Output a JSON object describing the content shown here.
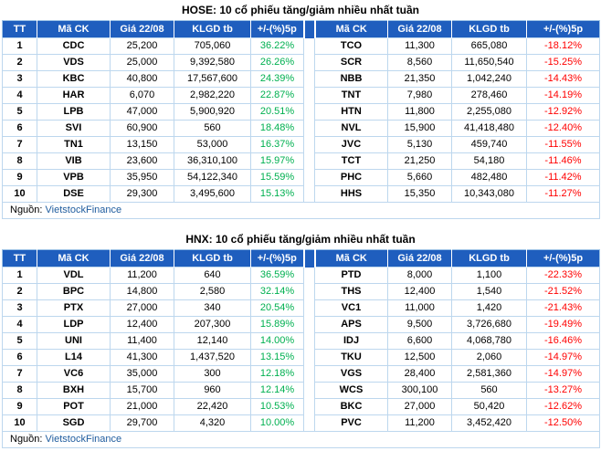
{
  "colors": {
    "header_bg": "#1F5EBE",
    "up_green": "#00B050",
    "down_red": "#FF0000",
    "grid_blue": "#BDD7EE",
    "source_name_blue": "#1F5C9E"
  },
  "source": {
    "prefix": "Nguồn:",
    "name": "VietstockFinance"
  },
  "chart_data": [
    {
      "type": "table",
      "title": "HOSE: 10 cổ phiếu tăng/giảm nhiều nhất tuần",
      "headers": [
        "TT",
        "Mã CK",
        "Giá 22/08",
        "KLGD tb",
        "+/-(%)5p",
        "Mã CK",
        "Giá 22/08",
        "KLGD tb",
        "+/-(%)5p"
      ],
      "rows": [
        [
          "1",
          "CDC",
          "25,200",
          "705,060",
          "36.22%",
          "TCO",
          "11,300",
          "665,080",
          "-18.12%"
        ],
        [
          "2",
          "VDS",
          "25,000",
          "9,392,580",
          "26.26%",
          "SCR",
          "8,560",
          "11,650,540",
          "-15.25%"
        ],
        [
          "3",
          "KBC",
          "40,800",
          "17,567,600",
          "24.39%",
          "NBB",
          "21,350",
          "1,042,240",
          "-14.43%"
        ],
        [
          "4",
          "HAR",
          "6,070",
          "2,982,220",
          "22.87%",
          "TNT",
          "7,980",
          "278,460",
          "-14.19%"
        ],
        [
          "5",
          "LPB",
          "47,000",
          "5,900,920",
          "20.51%",
          "HTN",
          "11,800",
          "2,255,080",
          "-12.92%"
        ],
        [
          "6",
          "SVI",
          "60,900",
          "560",
          "18.48%",
          "NVL",
          "15,900",
          "41,418,480",
          "-12.40%"
        ],
        [
          "7",
          "TN1",
          "13,150",
          "53,000",
          "16.37%",
          "JVC",
          "5,130",
          "459,740",
          "-11.55%"
        ],
        [
          "8",
          "VIB",
          "23,600",
          "36,310,100",
          "15.97%",
          "TCT",
          "21,250",
          "54,180",
          "-11.46%"
        ],
        [
          "9",
          "VPB",
          "35,950",
          "54,122,340",
          "15.59%",
          "PHC",
          "5,660",
          "482,480",
          "-11.42%"
        ],
        [
          "10",
          "DSE",
          "29,300",
          "3,495,600",
          "15.13%",
          "HHS",
          "15,350",
          "10,343,080",
          "-11.27%"
        ]
      ],
      "source": "Nguồn: VietstockFinance"
    },
    {
      "type": "table",
      "title": "HNX: 10 cổ phiếu tăng/giảm nhiều nhất tuần",
      "headers": [
        "TT",
        "Mã CK",
        "Giá 22/08",
        "KLGD tb",
        "+/-(%)5p",
        "Mã CK",
        "Giá 22/08",
        "KLGD tb",
        "+/-(%)5p"
      ],
      "rows": [
        [
          "1",
          "VDL",
          "11,200",
          "640",
          "36.59%",
          "PTD",
          "8,000",
          "1,100",
          "-22.33%"
        ],
        [
          "2",
          "BPC",
          "14,800",
          "2,580",
          "32.14%",
          "THS",
          "12,400",
          "1,540",
          "-21.52%"
        ],
        [
          "3",
          "PTX",
          "27,000",
          "340",
          "20.54%",
          "VC1",
          "11,000",
          "1,420",
          "-21.43%"
        ],
        [
          "4",
          "LDP",
          "12,400",
          "207,300",
          "15.89%",
          "APS",
          "9,500",
          "3,726,680",
          "-19.49%"
        ],
        [
          "5",
          "UNI",
          "11,400",
          "12,140",
          "14.00%",
          "IDJ",
          "6,600",
          "4,068,780",
          "-16.46%"
        ],
        [
          "6",
          "L14",
          "41,300",
          "1,437,520",
          "13.15%",
          "TKU",
          "12,500",
          "2,060",
          "-14.97%"
        ],
        [
          "7",
          "VC6",
          "35,000",
          "300",
          "12.18%",
          "VGS",
          "28,400",
          "2,581,360",
          "-14.97%"
        ],
        [
          "8",
          "BXH",
          "15,700",
          "960",
          "12.14%",
          "WCS",
          "300,100",
          "560",
          "-13.27%"
        ],
        [
          "9",
          "POT",
          "21,000",
          "22,420",
          "10.53%",
          "BKC",
          "27,000",
          "50,420",
          "-12.62%"
        ],
        [
          "10",
          "SGD",
          "29,700",
          "4,320",
          "10.00%",
          "PVC",
          "11,200",
          "3,452,420",
          "-12.50%"
        ]
      ],
      "source": "Nguồn: VietstockFinance"
    }
  ]
}
